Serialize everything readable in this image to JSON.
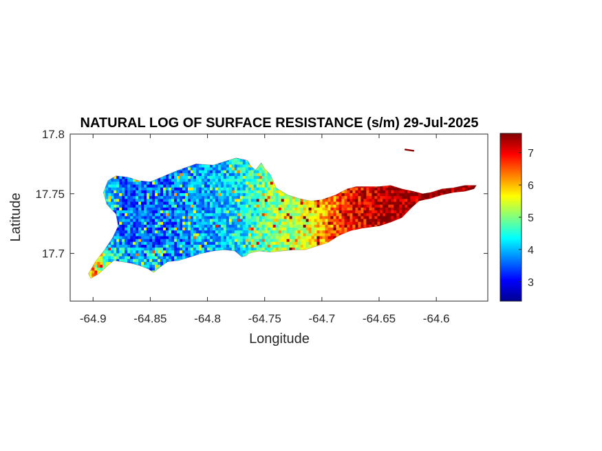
{
  "chart_data": {
    "type": "heatmap",
    "title": "NATURAL LOG OF SURFACE RESISTANCE (s/m) 29-Jul-2025",
    "xlabel": "Longitude",
    "ylabel": "Latitude",
    "xlim": [
      -64.92,
      -64.555
    ],
    "ylim": [
      17.66,
      17.8
    ],
    "xticks": [
      -64.9,
      -64.85,
      -64.8,
      -64.75,
      -64.7,
      -64.65,
      -64.6
    ],
    "xtick_labels": [
      "-64.9",
      "-64.85",
      "-64.8",
      "-64.75",
      "-64.7",
      "-64.65",
      "-64.6"
    ],
    "yticks": [
      17.7,
      17.75,
      17.8
    ],
    "ytick_labels": [
      "17.7",
      "17.75",
      "17.8"
    ],
    "colorbar": {
      "colormap": "jet",
      "range": [
        2.4,
        7.6
      ],
      "ticks": [
        3,
        4,
        5,
        6,
        7
      ],
      "tick_labels": [
        "3",
        "4",
        "5",
        "6",
        "7"
      ],
      "placement": "right"
    },
    "grid": false,
    "value_trend_by_longitude": {
      "longitude": [
        -64.9,
        -64.88,
        -64.85,
        -64.8,
        -64.77,
        -64.75,
        -64.72,
        -64.7,
        -64.68,
        -64.65,
        -64.6,
        -64.57
      ],
      "typical_value": [
        5.2,
        3.6,
        3.5,
        3.9,
        4.3,
        4.9,
        5.4,
        6.0,
        6.8,
        7.3,
        7.5,
        7.5
      ]
    },
    "region_outline_lonlat": [
      [
        -64.902,
        17.679
      ],
      [
        -64.895,
        17.683
      ],
      [
        -64.888,
        17.689
      ],
      [
        -64.882,
        17.694
      ],
      [
        -64.875,
        17.693
      ],
      [
        -64.868,
        17.692
      ],
      [
        -64.86,
        17.69
      ],
      [
        -64.852,
        17.687
      ],
      [
        -64.847,
        17.684
      ],
      [
        -64.842,
        17.688
      ],
      [
        -64.835,
        17.693
      ],
      [
        -64.825,
        17.694
      ],
      [
        -64.815,
        17.697
      ],
      [
        -64.805,
        17.7
      ],
      [
        -64.795,
        17.702
      ],
      [
        -64.785,
        17.703
      ],
      [
        -64.776,
        17.702
      ],
      [
        -64.77,
        17.697
      ],
      [
        -64.766,
        17.698
      ],
      [
        -64.764,
        17.7
      ],
      [
        -64.755,
        17.702
      ],
      [
        -64.745,
        17.701
      ],
      [
        -64.735,
        17.702
      ],
      [
        -64.725,
        17.703
      ],
      [
        -64.715,
        17.703
      ],
      [
        -64.705,
        17.706
      ],
      [
        -64.695,
        17.709
      ],
      [
        -64.685,
        17.715
      ],
      [
        -64.675,
        17.719
      ],
      [
        -64.665,
        17.721
      ],
      [
        -64.65,
        17.723
      ],
      [
        -64.64,
        17.726
      ],
      [
        -64.63,
        17.73
      ],
      [
        -64.622,
        17.738
      ],
      [
        -64.615,
        17.744
      ],
      [
        -64.605,
        17.746
      ],
      [
        -64.595,
        17.749
      ],
      [
        -64.585,
        17.751
      ],
      [
        -64.575,
        17.752
      ],
      [
        -64.567,
        17.754
      ],
      [
        -64.565,
        17.757
      ],
      [
        -64.575,
        17.757
      ],
      [
        -64.585,
        17.755
      ],
      [
        -64.595,
        17.754
      ],
      [
        -64.605,
        17.751
      ],
      [
        -64.612,
        17.75
      ],
      [
        -64.62,
        17.752
      ],
      [
        -64.63,
        17.754
      ],
      [
        -64.64,
        17.757
      ],
      [
        -64.65,
        17.756
      ],
      [
        -64.66,
        17.756
      ],
      [
        -64.67,
        17.756
      ],
      [
        -64.678,
        17.754
      ],
      [
        -64.688,
        17.749
      ],
      [
        -64.7,
        17.745
      ],
      [
        -64.71,
        17.744
      ],
      [
        -64.72,
        17.746
      ],
      [
        -64.73,
        17.749
      ],
      [
        -64.74,
        17.755
      ],
      [
        -64.745,
        17.766
      ],
      [
        -64.75,
        17.771
      ],
      [
        -64.753,
        17.776
      ],
      [
        -64.758,
        17.77
      ],
      [
        -64.762,
        17.773
      ],
      [
        -64.765,
        17.778
      ],
      [
        -64.775,
        17.78
      ],
      [
        -64.785,
        17.777
      ],
      [
        -64.795,
        17.774
      ],
      [
        -64.81,
        17.775
      ],
      [
        -64.825,
        17.77
      ],
      [
        -64.84,
        17.764
      ],
      [
        -64.85,
        17.76
      ],
      [
        -64.86,
        17.761
      ],
      [
        -64.87,
        17.764
      ],
      [
        -64.88,
        17.765
      ],
      [
        -64.887,
        17.761
      ],
      [
        -64.891,
        17.751
      ],
      [
        -64.888,
        17.741
      ],
      [
        -64.88,
        17.733
      ],
      [
        -64.878,
        17.723
      ],
      [
        -64.883,
        17.713
      ],
      [
        -64.89,
        17.703
      ],
      [
        -64.898,
        17.693
      ],
      [
        -64.904,
        17.683
      ]
    ],
    "islet_lonlat": [
      [
        -64.627,
        17.787
      ],
      [
        -64.62,
        17.786
      ]
    ]
  }
}
